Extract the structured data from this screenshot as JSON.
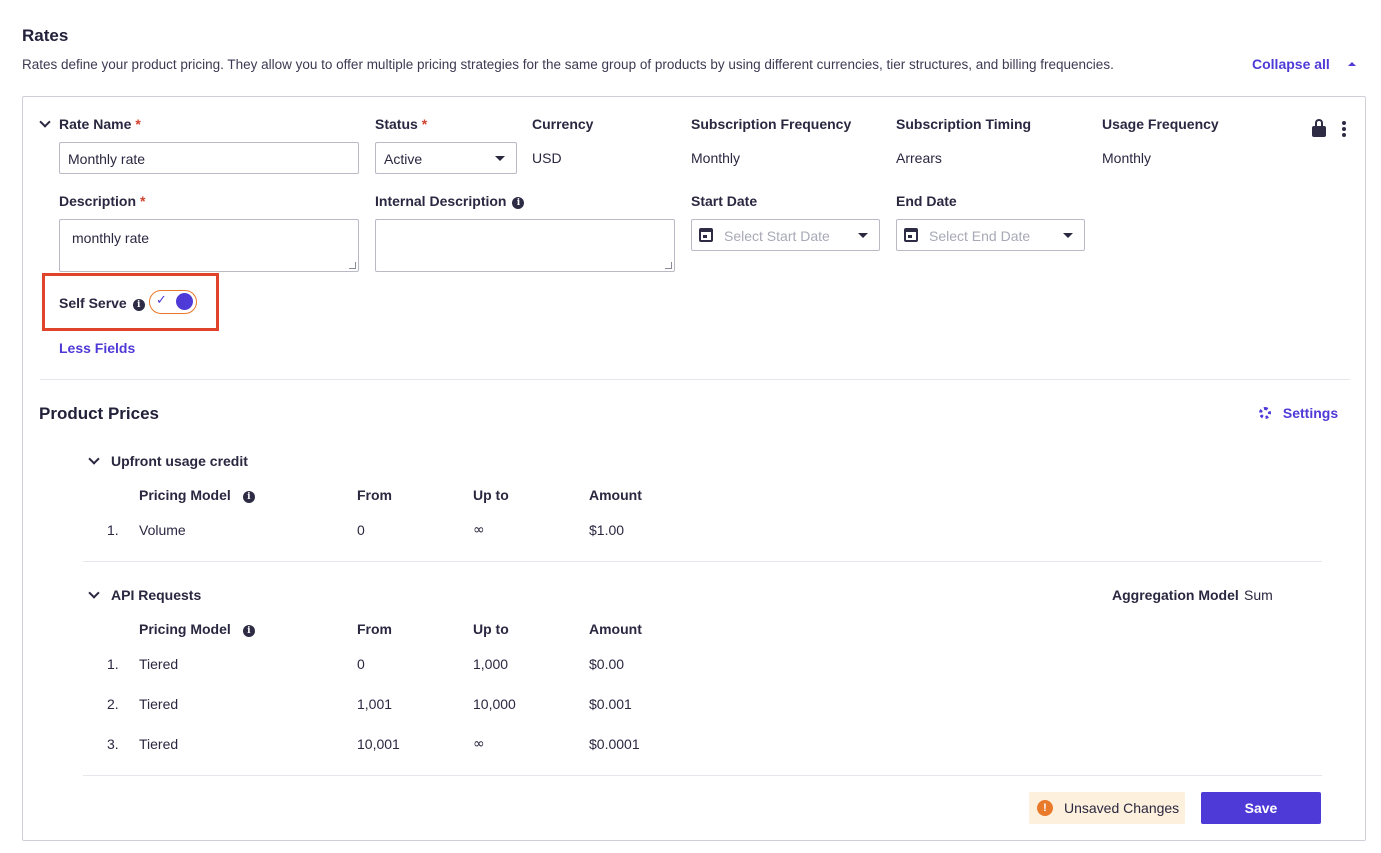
{
  "header": {
    "title": "Rates",
    "description": "Rates define your product pricing. They allow you to offer multiple pricing strategies for the same group of products by using different currencies, tier structures, and billing frequencies.",
    "collapse_all": "Collapse all"
  },
  "rate": {
    "name_label": "Rate Name",
    "name_value": "Monthly rate",
    "status_label": "Status",
    "status_value": "Active",
    "currency_label": "Currency",
    "currency_value": "USD",
    "sub_freq_label": "Subscription Frequency",
    "sub_freq_value": "Monthly",
    "sub_timing_label": "Subscription Timing",
    "sub_timing_value": "Arrears",
    "usage_freq_label": "Usage Frequency",
    "usage_freq_value": "Monthly",
    "description_label": "Description",
    "description_value": "monthly rate",
    "internal_desc_label": "Internal Description",
    "internal_desc_value": "",
    "start_date_label": "Start Date",
    "start_date_placeholder": "Select Start Date",
    "end_date_label": "End Date",
    "end_date_placeholder": "Select End Date",
    "self_serve_label": "Self Serve",
    "self_serve_enabled": true,
    "less_fields": "Less Fields",
    "required_mark": "*"
  },
  "prices": {
    "title": "Product Prices",
    "settings": "Settings",
    "col_pricing_model": "Pricing Model",
    "col_from": "From",
    "col_up_to": "Up to",
    "col_amount": "Amount",
    "groups": [
      {
        "name": "Upfront usage credit",
        "rows": [
          {
            "index": "1.",
            "model": "Volume",
            "from": "0",
            "up_to": "∞",
            "amount": "$1.00"
          }
        ]
      },
      {
        "name": "API Requests",
        "aggregation_label": "Aggregation Model",
        "aggregation_value": "Sum",
        "rows": [
          {
            "index": "1.",
            "model": "Tiered",
            "from": "0",
            "up_to": "1,000",
            "amount": "$0.00"
          },
          {
            "index": "2.",
            "model": "Tiered",
            "from": "1,001",
            "up_to": "10,000",
            "amount": "$0.001"
          },
          {
            "index": "3.",
            "model": "Tiered",
            "from": "10,001",
            "up_to": "∞",
            "amount": "$0.0001"
          }
        ]
      }
    ]
  },
  "footer": {
    "unsaved": "Unsaved Changes",
    "save": "Save"
  },
  "colors": {
    "accent": "#4e3ad6",
    "required": "#d1432e",
    "highlight_box": "#e0452c",
    "warning": "#e9792b",
    "warning_bg": "#fdf0dc"
  }
}
